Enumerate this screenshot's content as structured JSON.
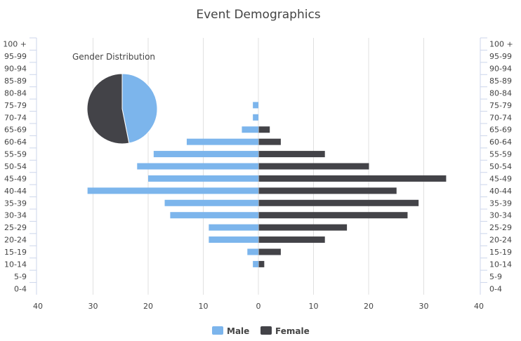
{
  "chart_data": {
    "type": "bar",
    "orientation": "horizontal-pyramid",
    "title": "Event Demographics",
    "categories": [
      "100 +",
      "95-99",
      "90-94",
      "85-89",
      "80-84",
      "75-79",
      "70-74",
      "65-69",
      "60-64",
      "55-59",
      "50-54",
      "45-49",
      "40-44",
      "35-39",
      "30-34",
      "25-29",
      "20-24",
      "15-19",
      "10-14",
      "5-9",
      "0-4"
    ],
    "series": [
      {
        "name": "Male",
        "color": "#7cb5ec",
        "values": [
          0,
          0,
          0,
          0,
          0,
          1,
          1,
          3,
          13,
          19,
          22,
          20,
          31,
          17,
          16,
          9,
          9,
          2,
          1,
          0,
          0
        ]
      },
      {
        "name": "Female",
        "color": "#434348",
        "values": [
          0,
          0,
          0,
          0,
          0,
          0,
          0,
          2,
          4,
          12,
          20,
          34,
          25,
          29,
          27,
          16,
          12,
          4,
          1,
          0,
          0
        ]
      }
    ],
    "xlim": [
      -40,
      40
    ],
    "xticks": [
      -40,
      -30,
      -20,
      -10,
      0,
      10,
      20,
      30,
      40
    ],
    "xtick_labels": [
      "40",
      "30",
      "20",
      "10",
      "0",
      "10",
      "20",
      "30",
      "40"
    ],
    "grid": true,
    "legend": "bottom-center",
    "inset_pie": {
      "title": "Gender Distribution",
      "slices": [
        {
          "name": "Male",
          "value": 164,
          "color": "#7cb5ec"
        },
        {
          "name": "Female",
          "value": 186,
          "color": "#434348"
        }
      ]
    }
  }
}
